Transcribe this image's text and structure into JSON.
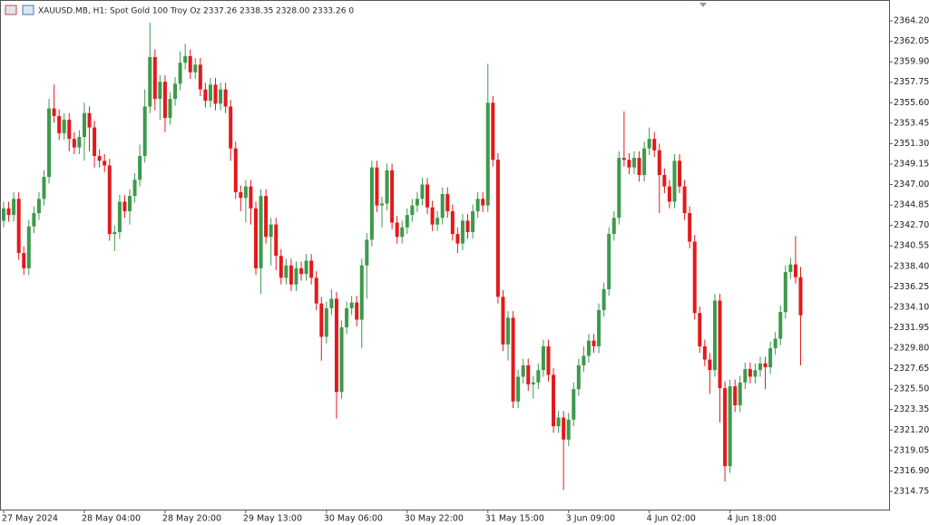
{
  "chart_data": {
    "type": "candlestick",
    "title": "XAUUSD.MB, H1:  Spot Gold 100 Troy Oz  2337.26 2338.35 2328.00 2333.26  0",
    "up_color": "#3c9a4c",
    "down_color": "#e3191c",
    "ylim": [
      2312.84,
      2366.3
    ],
    "yticks": [
      {
        "value": 2364.2,
        "label": "2364.20"
      },
      2362.05,
      {
        "value": 2359.9,
        "label": "2359.90"
      },
      2357.75,
      {
        "value": 2355.6,
        "label": "2355.60"
      },
      2353.45,
      {
        "value": 2351.3,
        "label": "2351.30"
      },
      2349.15,
      {
        "value": 2347,
        "label": "2347.00"
      },
      2344.85,
      {
        "value": 2342.7,
        "label": "2342.70"
      },
      2340.55,
      {
        "value": 2338.4,
        "label": "2338.40"
      },
      2336.25,
      {
        "value": 2334.1,
        "label": "2334.10"
      },
      2331.95,
      {
        "value": 2329.8,
        "label": "2329.80"
      },
      2327.65,
      {
        "value": 2325.5,
        "label": "2325.50"
      },
      2323.35,
      {
        "value": 2321.2,
        "label": "2321.20"
      },
      2319.05,
      {
        "value": 2316.9,
        "label": "2316.90"
      },
      2314.75
    ],
    "categories": [
      "27 May 2024",
      null,
      null,
      null,
      null,
      null,
      null,
      null,
      null,
      null,
      null,
      null,
      null,
      null,
      null,
      null,
      "28 May 04:00",
      null,
      null,
      null,
      null,
      null,
      null,
      null,
      null,
      null,
      null,
      null,
      null,
      null,
      null,
      null,
      "28 May 20:00",
      null,
      null,
      null,
      null,
      null,
      null,
      null,
      null,
      null,
      null,
      null,
      null,
      null,
      null,
      null,
      "29 May 13:00",
      null,
      null,
      null,
      null,
      null,
      null,
      null,
      null,
      null,
      null,
      null,
      null,
      null,
      null,
      null,
      "30 May 06:00",
      null,
      null,
      null,
      null,
      null,
      null,
      null,
      null,
      null,
      null,
      null,
      null,
      null,
      null,
      null,
      "30 May 22:00",
      null,
      null,
      null,
      null,
      null,
      null,
      null,
      null,
      null,
      null,
      null,
      null,
      null,
      null,
      null,
      "31 May 15:00",
      null,
      null,
      null,
      null,
      null,
      null,
      null,
      null,
      null,
      null,
      null,
      null,
      null,
      null,
      null,
      "3 Jun 09:00",
      null,
      null,
      null,
      null,
      null,
      null,
      null,
      null,
      null,
      null,
      null,
      null,
      null,
      null,
      null,
      "4 Jun 02:00",
      null,
      null,
      null,
      null,
      null,
      null,
      null,
      null,
      null,
      null,
      null,
      null,
      null,
      null,
      null,
      "4 Jun 18:00",
      null,
      null,
      null,
      null,
      null,
      null,
      null,
      null,
      null,
      null,
      null,
      null,
      null,
      null
    ],
    "open": [
      2343.2,
      2344.5,
      2343.8,
      2345.5,
      2339.8,
      2338.2,
      2342.6,
      2344.0,
      2345.5,
      2347.8,
      2355.0,
      2354.2,
      2352.4,
      2353.8,
      2351.8,
      2350.9,
      2352.0,
      2354.5,
      2353.0,
      2350.0,
      2349.5,
      2349.0,
      2341.8,
      2342.0,
      2345.2,
      2344.2,
      2345.8,
      2347.5,
      2350.0,
      2355.2,
      2360.4,
      2356.0,
      2357.8,
      2354.0,
      2356.0,
      2357.6,
      2359.8,
      2360.5,
      2358.8,
      2359.6,
      2357.0,
      2355.8,
      2357.5,
      2355.5,
      2357.0,
      2355.2,
      2350.8,
      2346.2,
      2345.6,
      2346.8,
      2344.5,
      2338.2,
      2345.8,
      2341.5,
      2342.8,
      2339.5,
      2337.2,
      2338.5,
      2336.5,
      2338.2,
      2337.6,
      2339.0,
      2337.2,
      2334.5,
      2331.0,
      2334.0,
      2335.0,
      2325.2,
      2332.0,
      2334.0,
      2334.6,
      2332.8,
      2338.5,
      2341.2,
      2348.8,
      2344.8,
      2345.0,
      2348.5,
      2343.0,
      2341.5,
      2342.5,
      2343.8,
      2344.8,
      2345.5,
      2347.0,
      2344.6,
      2342.8,
      2343.5,
      2346.0,
      2344.2,
      2341.8,
      2340.8,
      2343.2,
      2342.0,
      2344.2,
      2345.5,
      2344.8,
      2355.6,
      2349.6,
      2335.2,
      2330.2,
      2333.0,
      2324.2,
      2326.8,
      2328.0,
      2326.0,
      2326.2,
      2327.5,
      2330.0,
      2327.0,
      2321.6,
      2322.5,
      2320.2,
      2322.3,
      2325.5,
      2328.0,
      2329.0,
      2330.6,
      2330.0,
      2333.8,
      2336.0,
      2341.8,
      2343.5,
      2349.8,
      2349.6,
      2348.8,
      2349.8,
      2348.0,
      2350.8,
      2351.8,
      2350.6,
      2348.0,
      2346.8,
      2345.2,
      2349.5,
      2346.8,
      2344.0,
      2341.0,
      2333.5,
      2330.0,
      2328.6,
      2327.5,
      2334.8,
      2325.6,
      2317.4,
      2325.8,
      2323.8,
      2326.2,
      2327.6,
      2326.8,
      2327.5,
      2328.2,
      2327.8,
      2329.8,
      2330.8,
      2333.6,
      2337.8,
      2338.6,
      2337.26
    ],
    "high": [
      2345.2,
      2345.2,
      2346.2,
      2346.2,
      2340.5,
      2343.3,
      2344.7,
      2346.2,
      2348.5,
      2356.0,
      2357.5,
      2354.9,
      2354.5,
      2354.5,
      2352.5,
      2352.7,
      2355.6,
      2355.2,
      2353.7,
      2350.7,
      2350.2,
      2349.7,
      2342.7,
      2345.9,
      2345.9,
      2346.5,
      2348.2,
      2351.2,
      2357.0,
      2364.0,
      2361.2,
      2358.5,
      2358.5,
      2356.7,
      2358.3,
      2361.0,
      2361.8,
      2361.2,
      2360.3,
      2360.3,
      2357.7,
      2358.2,
      2358.2,
      2357.7,
      2357.7,
      2355.9,
      2351.5,
      2346.9,
      2347.5,
      2347.5,
      2345.2,
      2346.5,
      2346.5,
      2343.5,
      2343.5,
      2340.2,
      2339.2,
      2339.2,
      2338.9,
      2338.9,
      2339.7,
      2339.7,
      2337.9,
      2335.2,
      2334.7,
      2336.0,
      2335.7,
      2332.7,
      2334.7,
      2335.3,
      2335.3,
      2339.2,
      2341.9,
      2349.5,
      2349.5,
      2345.7,
      2349.2,
      2349.2,
      2343.7,
      2343.2,
      2344.5,
      2345.5,
      2346.2,
      2347.7,
      2347.7,
      2345.3,
      2344.2,
      2346.7,
      2346.7,
      2344.9,
      2342.5,
      2343.9,
      2343.9,
      2344.9,
      2346.2,
      2346.2,
      2359.7,
      2356.3,
      2350.3,
      2335.9,
      2333.7,
      2333.7,
      2327.5,
      2328.7,
      2328.7,
      2326.9,
      2328.2,
      2330.7,
      2330.7,
      2327.7,
      2323.2,
      2323.2,
      2323.0,
      2326.2,
      2328.7,
      2330.0,
      2331.3,
      2331.3,
      2334.5,
      2336.7,
      2342.5,
      2344.2,
      2350.5,
      2354.7,
      2350.3,
      2350.5,
      2350.5,
      2351.5,
      2353.0,
      2352.5,
      2351.3,
      2348.7,
      2347.5,
      2350.2,
      2350.2,
      2347.5,
      2344.7,
      2341.7,
      2334.2,
      2330.7,
      2329.3,
      2335.5,
      2335.5,
      2326.3,
      2326.5,
      2326.5,
      2326.9,
      2328.3,
      2328.3,
      2328.2,
      2328.9,
      2328.9,
      2330.5,
      2331.5,
      2334.3,
      2338.5,
      2339.3,
      2341.6,
      2338.35
    ],
    "low": [
      2342.5,
      2343.1,
      2343.1,
      2339.1,
      2337.5,
      2337.5,
      2341.9,
      2343.3,
      2344.8,
      2347.1,
      2353.5,
      2351.7,
      2351.7,
      2350.5,
      2350.2,
      2350.2,
      2349.5,
      2350.5,
      2348.8,
      2348.8,
      2348.3,
      2341.1,
      2340.0,
      2341.3,
      2343.5,
      2342.8,
      2345.1,
      2346.8,
      2349.3,
      2354.5,
      2354.8,
      2353.8,
      2352.5,
      2353.3,
      2355.3,
      2356.9,
      2359.1,
      2358.1,
      2358.1,
      2356.3,
      2355.1,
      2355.1,
      2354.8,
      2354.8,
      2354.5,
      2349.5,
      2345.5,
      2344.2,
      2343.0,
      2342.8,
      2337.5,
      2335.5,
      2340.8,
      2338.5,
      2338.0,
      2336.5,
      2336.5,
      2335.8,
      2335.8,
      2336.9,
      2336.9,
      2336.5,
      2333.8,
      2328.5,
      2330.3,
      2333.3,
      2322.4,
      2324.5,
      2331.3,
      2333.3,
      2332.1,
      2329.8,
      2335.0,
      2340.5,
      2344.1,
      2342.5,
      2344.3,
      2342.3,
      2340.8,
      2340.8,
      2341.8,
      2343.1,
      2344.1,
      2344.8,
      2343.9,
      2342.1,
      2342.1,
      2342.8,
      2343.5,
      2341.1,
      2339.8,
      2340.1,
      2341.3,
      2341.3,
      2343.5,
      2344.1,
      2344.1,
      2348.9,
      2334.5,
      2329.5,
      2328.5,
      2323.5,
      2323.5,
      2326.1,
      2325.3,
      2324.5,
      2325.5,
      2326.8,
      2326.3,
      2320.9,
      2320.9,
      2314.9,
      2319.5,
      2321.6,
      2324.8,
      2327.3,
      2328.3,
      2329.3,
      2329.3,
      2333.1,
      2335.3,
      2341.1,
      2342.8,
      2348.9,
      2348.1,
      2348.1,
      2347.3,
      2347.3,
      2350.1,
      2349.9,
      2344.0,
      2346.1,
      2344.5,
      2344.5,
      2346.1,
      2343.3,
      2340.3,
      2332.8,
      2329.3,
      2327.9,
      2325.0,
      2326.8,
      2322.0,
      2315.8,
      2316.7,
      2323.1,
      2323.1,
      2325.5,
      2326.1,
      2326.1,
      2326.8,
      2325.5,
      2327.1,
      2329.1,
      2330.1,
      2332.9,
      2337.1,
      2336.6,
      2328.0
    ],
    "close": [
      2344.5,
      2343.8,
      2345.5,
      2339.8,
      2338.2,
      2342.6,
      2344.0,
      2345.5,
      2347.8,
      2355.0,
      2354.2,
      2352.4,
      2353.8,
      2351.8,
      2350.9,
      2352.0,
      2354.5,
      2353.0,
      2350.0,
      2349.5,
      2349.0,
      2341.8,
      2342.0,
      2345.2,
      2344.2,
      2345.8,
      2347.5,
      2350.0,
      2355.2,
      2360.4,
      2356.0,
      2357.8,
      2354.0,
      2356.0,
      2357.6,
      2359.8,
      2360.5,
      2358.8,
      2359.6,
      2357.0,
      2355.8,
      2357.5,
      2355.5,
      2357.0,
      2355.2,
      2350.8,
      2346.2,
      2345.6,
      2346.8,
      2344.5,
      2338.2,
      2345.8,
      2341.5,
      2342.8,
      2339.5,
      2337.2,
      2338.5,
      2336.5,
      2338.2,
      2337.6,
      2339.0,
      2337.2,
      2334.5,
      2331.0,
      2334.0,
      2335.0,
      2325.2,
      2332.0,
      2334.0,
      2334.6,
      2332.8,
      2338.5,
      2341.2,
      2348.8,
      2344.8,
      2345.0,
      2348.5,
      2343.0,
      2341.5,
      2342.5,
      2343.8,
      2344.8,
      2345.5,
      2347.0,
      2344.6,
      2342.8,
      2343.5,
      2346.0,
      2344.2,
      2341.8,
      2340.8,
      2343.2,
      2342.0,
      2344.2,
      2345.5,
      2344.8,
      2355.6,
      2349.6,
      2335.2,
      2330.2,
      2333.0,
      2324.2,
      2326.8,
      2328.0,
      2326.0,
      2326.2,
      2327.5,
      2330.0,
      2327.0,
      2321.6,
      2322.5,
      2320.2,
      2322.3,
      2325.5,
      2328.0,
      2329.0,
      2330.6,
      2330.0,
      2333.8,
      2336.0,
      2341.8,
      2343.5,
      2349.8,
      2349.6,
      2348.8,
      2349.8,
      2348.0,
      2350.8,
      2351.8,
      2350.6,
      2348.0,
      2346.8,
      2345.2,
      2349.5,
      2346.8,
      2344.0,
      2341.0,
      2333.5,
      2330.0,
      2328.6,
      2327.5,
      2334.8,
      2325.6,
      2317.4,
      2325.8,
      2323.8,
      2326.2,
      2327.6,
      2326.8,
      2327.5,
      2328.2,
      2327.8,
      2329.8,
      2330.8,
      2333.6,
      2337.8,
      2338.6,
      2337.26,
      2333.26
    ]
  }
}
